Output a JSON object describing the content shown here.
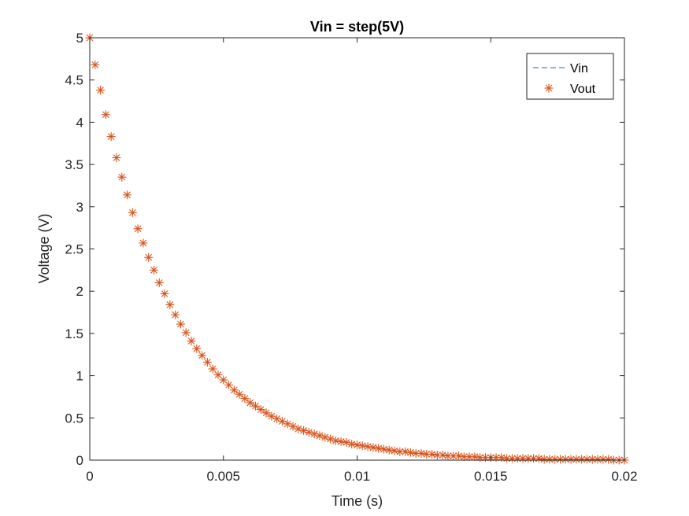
{
  "chart_data": {
    "type": "scatter",
    "title": "Vin = step(5V)",
    "xlabel": "Time (s)",
    "ylabel": "Voltage (V)",
    "xlim": [
      0,
      0.02
    ],
    "ylim": [
      0,
      5
    ],
    "xticks": [
      0,
      0.005,
      0.01,
      0.015,
      0.02
    ],
    "xtick_labels": [
      "0",
      "0.005",
      "0.01",
      "0.015",
      "0.02"
    ],
    "yticks": [
      0,
      0.5,
      1,
      1.5,
      2,
      2.5,
      3,
      3.5,
      4,
      4.5,
      5
    ],
    "ytick_labels": [
      "0",
      "0.5",
      "1",
      "1.5",
      "2",
      "2.5",
      "3",
      "3.5",
      "4",
      "4.5",
      "5"
    ],
    "grid": false,
    "legend_position": "top-right",
    "series": [
      {
        "name": "Vin",
        "style": "dashed-line",
        "color": "#0072BD",
        "x": [
          0,
          0.02
        ],
        "y": [
          5,
          5
        ]
      },
      {
        "name": "Vout",
        "style": "asterisk-marker",
        "color": "#D95319",
        "x": [
          0,
          0.0002,
          0.0004,
          0.0006,
          0.0008,
          0.001,
          0.0012,
          0.0014,
          0.0016,
          0.0018,
          0.002,
          0.0022,
          0.0024,
          0.0026,
          0.0028,
          0.003,
          0.0032,
          0.0034,
          0.0036,
          0.0038,
          0.004,
          0.0042,
          0.0044,
          0.0046,
          0.0048,
          0.005,
          0.0052,
          0.0054,
          0.0056,
          0.0058,
          0.006,
          0.0062,
          0.0064,
          0.0066,
          0.0068,
          0.007,
          0.0072,
          0.0074,
          0.0076,
          0.0078,
          0.008,
          0.0082,
          0.0084,
          0.0086,
          0.0088,
          0.009,
          0.0092,
          0.0094,
          0.0096,
          0.0098,
          0.01,
          0.0102,
          0.0104,
          0.0106,
          0.0108,
          0.011,
          0.0112,
          0.0114,
          0.0116,
          0.0118,
          0.012,
          0.0122,
          0.0124,
          0.0126,
          0.0128,
          0.013,
          0.0132,
          0.0134,
          0.0136,
          0.0138,
          0.014,
          0.0142,
          0.0144,
          0.0146,
          0.0148,
          0.015,
          0.0152,
          0.0154,
          0.0156,
          0.0158,
          0.016,
          0.0162,
          0.0164,
          0.0166,
          0.0168,
          0.017,
          0.0172,
          0.0174,
          0.0176,
          0.0178,
          0.018,
          0.0182,
          0.0184,
          0.0186,
          0.0188,
          0.019,
          0.0192,
          0.0194,
          0.0196,
          0.0198,
          0.02
        ],
        "y": [
          5,
          4.68,
          4.38,
          4.09,
          3.83,
          3.58,
          3.35,
          3.14,
          2.93,
          2.74,
          2.57,
          2.4,
          2.25,
          2.1,
          1.97,
          1.84,
          1.72,
          1.61,
          1.51,
          1.41,
          1.32,
          1.24,
          1.16,
          1.08,
          1.01,
          0.95,
          0.89,
          0.83,
          0.78,
          0.73,
          0.68,
          0.64,
          0.6,
          0.56,
          0.52,
          0.49,
          0.46,
          0.43,
          0.4,
          0.37,
          0.35,
          0.33,
          0.31,
          0.29,
          0.27,
          0.25,
          0.23,
          0.22,
          0.21,
          0.19,
          0.18,
          0.17,
          0.16,
          0.15,
          0.14,
          0.13,
          0.12,
          0.11,
          0.1,
          0.1,
          0.09,
          0.08,
          0.08,
          0.07,
          0.07,
          0.06,
          0.06,
          0.05,
          0.05,
          0.05,
          0.04,
          0.04,
          0.04,
          0.03,
          0.03,
          0.03,
          0.03,
          0.03,
          0.02,
          0.02,
          0.02,
          0.02,
          0.02,
          0.02,
          0.02,
          0.01,
          0.01,
          0.01,
          0.01,
          0.01,
          0.01,
          0.01,
          0.01,
          0.01,
          0.01,
          0.01,
          0.01,
          0.01,
          0.0,
          0.0,
          0.0
        ]
      }
    ]
  }
}
